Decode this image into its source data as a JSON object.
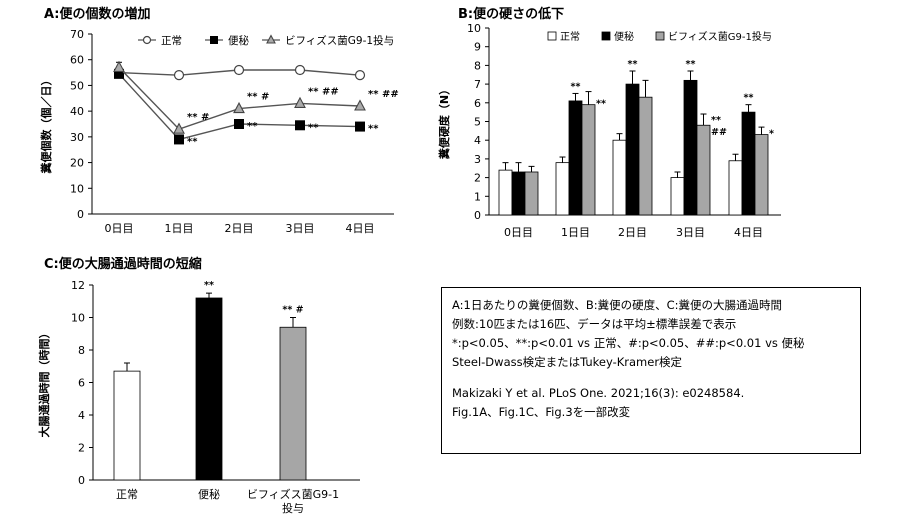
{
  "chart_data": [
    {
      "id": "A",
      "type": "line",
      "title": "A:便の個数の増加",
      "ylabel": "糞便個数（個／日）",
      "ylim": [
        0,
        70
      ],
      "yticks": [
        0,
        10,
        20,
        30,
        40,
        50,
        60,
        70
      ],
      "categories": [
        "0日目",
        "1日目",
        "2日目",
        "3日目",
        "4日目"
      ],
      "legend_position": "top",
      "series": [
        {
          "name": "正常",
          "marker": "circle-open",
          "values": [
            55,
            54,
            56,
            56,
            54
          ],
          "errors": [
            1.5,
            0,
            0,
            0,
            0
          ],
          "annotations": [
            "",
            "",
            "",
            "",
            ""
          ]
        },
        {
          "name": "便秘",
          "marker": "square-filled",
          "values": [
            54.5,
            29,
            35,
            34.5,
            34
          ],
          "errors": [
            1,
            0,
            0,
            0,
            0
          ],
          "annotations": [
            "",
            "**",
            "**",
            "**",
            "**"
          ]
        },
        {
          "name": "ビフィズス菌G9-1投与",
          "marker": "triangle-open",
          "values": [
            57,
            33,
            41,
            43,
            42
          ],
          "errors": [
            2,
            0,
            0,
            0,
            0
          ],
          "annotations": [
            "",
            "** #",
            "** #",
            "** ##",
            "** ##"
          ]
        }
      ]
    },
    {
      "id": "B",
      "type": "bar",
      "title": "B:便の硬さの低下",
      "ylabel": "糞便硬度（N）",
      "ylim": [
        0,
        10
      ],
      "yticks": [
        0,
        1,
        2,
        3,
        4,
        5,
        6,
        7,
        8,
        9,
        10
      ],
      "categories": [
        "0日目",
        "1日目",
        "2日目",
        "3日目",
        "4日目"
      ],
      "legend_position": "top",
      "series": [
        {
          "name": "正常",
          "color": "#ffffff",
          "values": [
            2.4,
            2.8,
            4.0,
            2.0,
            2.9
          ],
          "errors": [
            0.4,
            0.3,
            0.35,
            0.3,
            0.35
          ],
          "annotations": [
            "",
            "",
            "",
            "",
            ""
          ]
        },
        {
          "name": "便秘",
          "color": "#000000",
          "values": [
            2.3,
            6.1,
            7.0,
            7.2,
            5.5
          ],
          "errors": [
            0.5,
            0.4,
            0.7,
            0.5,
            0.4
          ],
          "annotations": [
            "",
            "**",
            "**",
            "**",
            "**"
          ]
        },
        {
          "name": "ビフィズス菌G9-1投与",
          "color": "#a6a6a6",
          "values": [
            2.3,
            5.9,
            6.3,
            4.8,
            4.3
          ],
          "errors": [
            0.3,
            0.7,
            0.9,
            0.6,
            0.4
          ],
          "annotations": [
            "",
            "**",
            "",
            "**|##",
            "*"
          ]
        }
      ]
    },
    {
      "id": "C",
      "type": "bar",
      "title": "C:便の大腸通過時間の短縮",
      "ylabel": "大腸通過時間（時間）",
      "ylim": [
        0,
        12
      ],
      "yticks": [
        0,
        2,
        4,
        6,
        8,
        10,
        12
      ],
      "categories": [
        "正常",
        "便秘",
        "ビフィズス菌G9-1|投与"
      ],
      "values": [
        6.7,
        11.2,
        9.4
      ],
      "errors": [
        0.5,
        0.3,
        0.6
      ],
      "colors": [
        "#ffffff",
        "#000000",
        "#a6a6a6"
      ],
      "annotations": [
        "",
        "**",
        "** #"
      ]
    }
  ],
  "notes": [
    "A:1日あたりの糞便個数、B:糞便の硬度、C:糞便の大腸通過時間",
    "例数:10匹または16匹、データは平均±標準誤差で表示",
    "*:p<0.05、**:p<0.01 vs 正常、#:p<0.05、##:p<0.01 vs 便秘",
    "Steel-Dwass検定またはTukey-Kramer検定",
    "Makizaki Y et al. PLoS One. 2021;16(3): e0248584.",
    "Fig.1A、Fig.1C、Fig.3を一部改変"
  ]
}
